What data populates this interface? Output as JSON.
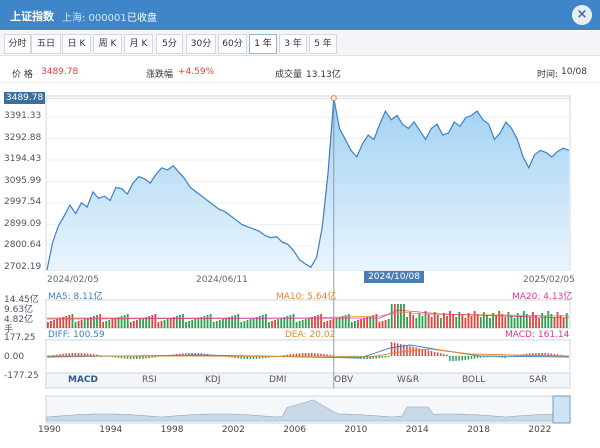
{
  "header": {
    "title": "上证指数",
    "code": "上海: 000001",
    "status": "已收盘",
    "close_label": "×"
  },
  "tabs": [
    "分时",
    "五日",
    "日 K",
    "周 K",
    "月 K",
    "5分",
    "30分",
    "60分",
    "1 年",
    "3 年",
    "5 年"
  ],
  "active_tab": "1 年",
  "info": {
    "price_label": "价 格",
    "price_value": "3489.78",
    "change_label": "涨跌幅",
    "change_value": "+4.59%",
    "volume_label": "成交量",
    "volume_value": "13.13亿",
    "time_label": "时间:",
    "time_value": "10/08"
  },
  "main_chart": {
    "current_value": "3489.78",
    "y_ticks": [
      "3391.33",
      "3292.88",
      "3194.43",
      "3095.99",
      "2997.54",
      "2899.09",
      "2800.64",
      "2702.19"
    ],
    "x_labels": [
      "2024/02/05",
      "2024/06/11",
      "2025/02/05"
    ],
    "crosshair_date": "2024/10/08"
  },
  "volume": {
    "y_ticks": [
      "14.45亿",
      "9.63亿",
      "4.82亿",
      "手"
    ],
    "ma5": "MA5: 8.11亿",
    "ma10": "MA10: 5.64亿",
    "ma20": "MA20: 4.13亿"
  },
  "macd": {
    "y_ticks": [
      "177.25",
      "0.00",
      "-177.25"
    ],
    "diff": "DIFF: 100.59",
    "dea": "DEA: 20.02",
    "macd": "MACD: 161.14"
  },
  "indicator_tabs": [
    "MACD",
    "RSI",
    "KDJ",
    "DMI",
    "OBV",
    "W&R",
    "BOLL",
    "SAR"
  ],
  "active_indicator": "MACD",
  "navigator": {
    "years": [
      "1990",
      "1994",
      "1998",
      "2002",
      "2006",
      "2010",
      "2014",
      "2018",
      "2022"
    ]
  },
  "colors": {
    "header_bg": "#3f86c8",
    "line": "#3d7fc4",
    "area": "#bfe0f7",
    "up": "#e0433b",
    "down": "#2e9e4f",
    "ma5": "#3d7fc4",
    "ma10": "#e08a2e",
    "ma20": "#d63a9c"
  },
  "chart_data": {
    "type": "area",
    "ylim": [
      2702.19,
      3489.78
    ],
    "x_start": "2024/02/05",
    "x_end": "2025/02/05",
    "values": [
      2702,
      2830,
      2905,
      2950,
      3000,
      2960,
      3010,
      2990,
      3060,
      3030,
      3040,
      3020,
      3080,
      3075,
      3050,
      3100,
      3130,
      3120,
      3100,
      3140,
      3170,
      3160,
      3180,
      3150,
      3120,
      3080,
      3060,
      3040,
      3020,
      3000,
      2980,
      2970,
      2950,
      2930,
      2910,
      2900,
      2890,
      2880,
      2860,
      2850,
      2855,
      2830,
      2820,
      2790,
      2750,
      2730,
      2715,
      2760,
      2900,
      3150,
      3489,
      3350,
      3300,
      3250,
      3220,
      3280,
      3320,
      3300,
      3370,
      3430,
      3390,
      3410,
      3370,
      3350,
      3380,
      3340,
      3300,
      3350,
      3370,
      3320,
      3330,
      3380,
      3360,
      3400,
      3410,
      3430,
      3390,
      3370,
      3300,
      3330,
      3380,
      3350,
      3300,
      3220,
      3170,
      3230,
      3250,
      3240,
      3220,
      3245,
      3260,
      3250
    ],
    "crosshair_index": 50
  }
}
